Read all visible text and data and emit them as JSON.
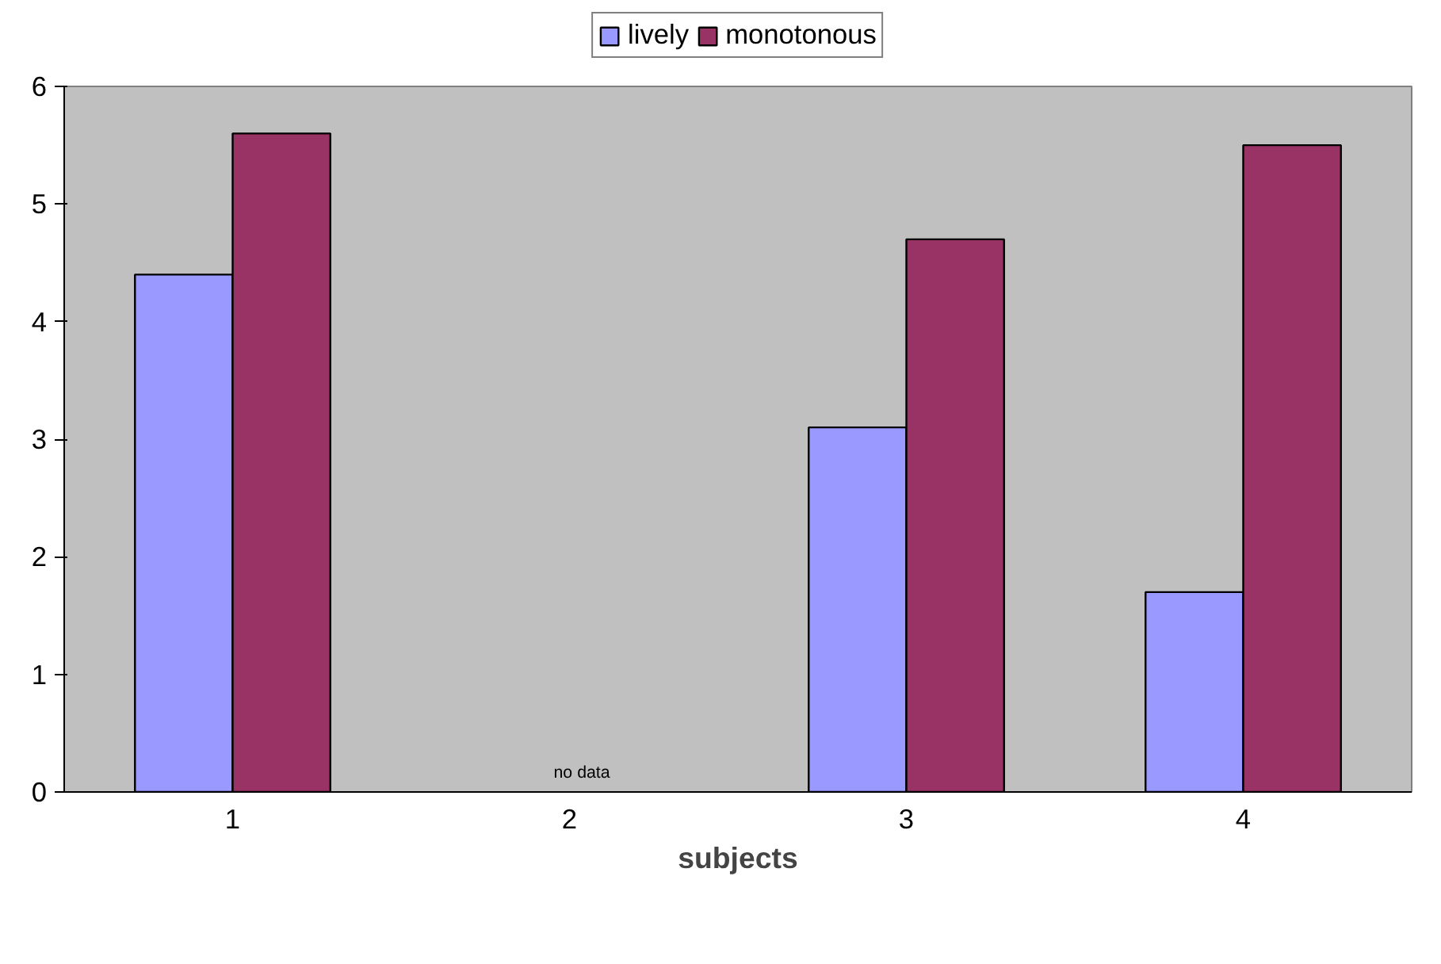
{
  "chart_data": {
    "type": "bar",
    "xlabel": "subjects",
    "categories": [
      "1",
      "2",
      "3",
      "4"
    ],
    "series": [
      {
        "name": "lively",
        "color": "#9999ff",
        "values": [
          4.4,
          null,
          3.1,
          1.7
        ]
      },
      {
        "name": "monotonous",
        "color": "#993366",
        "values": [
          5.6,
          null,
          4.7,
          5.5
        ]
      }
    ],
    "ylim": [
      0,
      6
    ],
    "yticks": [
      0,
      1,
      2,
      3,
      4,
      5,
      6
    ],
    "grid": false,
    "legend": "top",
    "annotations": [
      "no data"
    ]
  }
}
